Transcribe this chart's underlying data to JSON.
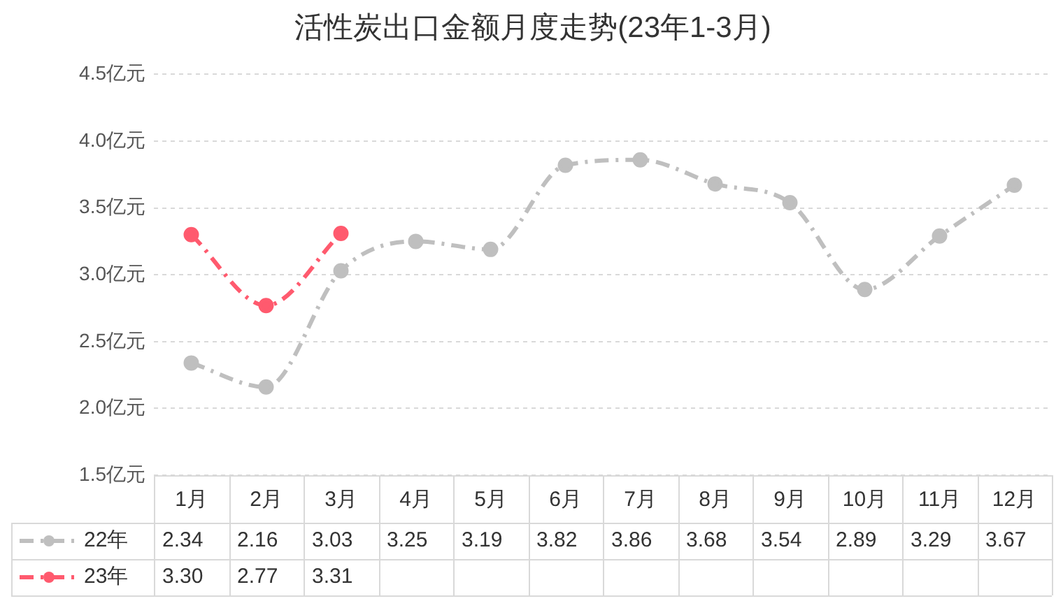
{
  "chart_data": {
    "type": "line",
    "title": "活性炭出口金额月度走势(23年1-3月)",
    "categories": [
      "1月",
      "2月",
      "3月",
      "4月",
      "5月",
      "6月",
      "7月",
      "8月",
      "9月",
      "10月",
      "11月",
      "12月"
    ],
    "series": [
      {
        "name": "22年",
        "color": "#bfbfbf",
        "values": [
          2.34,
          2.16,
          3.03,
          3.25,
          3.19,
          3.82,
          3.86,
          3.68,
          3.54,
          2.89,
          3.29,
          3.67
        ],
        "value_labels": [
          "2.34",
          "2.16",
          "3.03",
          "3.25",
          "3.19",
          "3.82",
          "3.86",
          "3.68",
          "3.54",
          "2.89",
          "3.29",
          "3.67"
        ]
      },
      {
        "name": "23年",
        "color": "#ff5a6e",
        "values": [
          3.3,
          2.77,
          3.31,
          null,
          null,
          null,
          null,
          null,
          null,
          null,
          null,
          null
        ],
        "value_labels": [
          "3.30",
          "2.77",
          "3.31",
          null,
          null,
          null,
          null,
          null,
          null,
          null,
          null,
          null
        ]
      }
    ],
    "ylim": [
      1.5,
      4.5
    ],
    "yticks": [
      {
        "value": 1.5,
        "label": "1.5亿元"
      },
      {
        "value": 2,
        "label": "2.0亿元"
      },
      {
        "value": 2.5,
        "label": "2.5亿元"
      },
      {
        "value": 3,
        "label": "3.0亿元"
      },
      {
        "value": 3.5,
        "label": "3.5亿元"
      },
      {
        "value": 4,
        "label": "4.0亿元"
      },
      {
        "value": 4.5,
        "label": "4.5亿元"
      }
    ],
    "grid": "y",
    "legend": "bottom left",
    "marker": "circle",
    "line_style": "dashed"
  }
}
